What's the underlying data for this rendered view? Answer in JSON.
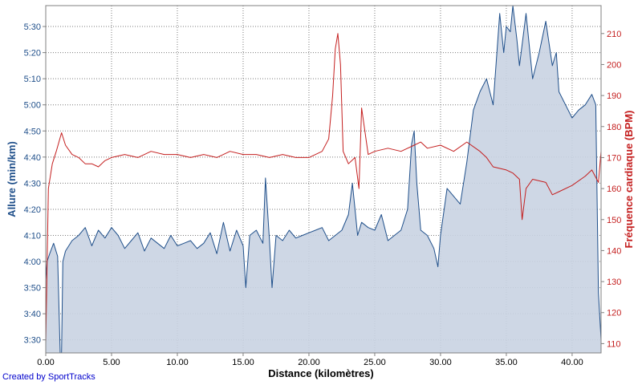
{
  "chart_data": {
    "type": "area",
    "xlabel": "Distance (kilomètres)",
    "x_ticks": [
      "0.00",
      "5.00",
      "10.00",
      "15.00",
      "20.00",
      "25.00",
      "30.00",
      "35.00",
      "40.00"
    ],
    "xlim": [
      0,
      42.2
    ],
    "grid": true,
    "left_axis": {
      "label": "Allure (min/km)",
      "ticks": [
        "3:30",
        "3:40",
        "3:50",
        "4:00",
        "4:10",
        "4:20",
        "4:30",
        "4:40",
        "4:50",
        "5:00",
        "5:10",
        "5:20",
        "5:30"
      ],
      "ylim_seconds": [
        205,
        338
      ]
    },
    "right_axis": {
      "label": "Fréquence cardiaque (BPM)",
      "ticks": [
        "110",
        "120",
        "130",
        "140",
        "150",
        "160",
        "170",
        "180",
        "190",
        "200",
        "210"
      ],
      "ylim": [
        107,
        219
      ]
    },
    "series": [
      {
        "axis": "left",
        "color": "#1f4f8a",
        "fill": "#c9d3e2",
        "x": [
          0,
          0.1,
          0.3,
          0.6,
          0.9,
          1.1,
          1.2,
          1.3,
          1.5,
          2.0,
          2.5,
          3.0,
          3.5,
          4.0,
          4.5,
          5.0,
          5.5,
          6.0,
          6.5,
          7.0,
          7.5,
          8.0,
          8.5,
          9.0,
          9.5,
          10.0,
          10.5,
          11.0,
          11.5,
          12.0,
          12.5,
          13.0,
          13.5,
          14.0,
          14.5,
          15.0,
          15.2,
          15.5,
          16.0,
          16.5,
          16.7,
          17.0,
          17.2,
          17.5,
          18.0,
          18.5,
          19.0,
          19.5,
          20.0,
          20.5,
          21.0,
          21.5,
          22.0,
          22.5,
          23.0,
          23.3,
          23.5,
          23.7,
          24.0,
          24.5,
          25.0,
          25.5,
          26.0,
          26.5,
          27.0,
          27.5,
          27.8,
          28.0,
          28.2,
          28.5,
          29.0,
          29.5,
          29.8,
          30.0,
          30.5,
          31.0,
          31.5,
          32.0,
          32.5,
          33.0,
          33.5,
          34.0,
          34.5,
          34.8,
          35.0,
          35.3,
          35.5,
          35.8,
          36.0,
          36.5,
          37.0,
          37.5,
          38.0,
          38.5,
          38.8,
          39.0,
          39.5,
          40.0,
          40.5,
          41.0,
          41.5,
          41.8,
          42.0,
          42.2
        ],
        "values_seconds": [
          233,
          240,
          243,
          247,
          242,
          205,
          203,
          240,
          244,
          248,
          250,
          253,
          246,
          252,
          249,
          253,
          250,
          245,
          248,
          251,
          244,
          249,
          247,
          245,
          250,
          246,
          247,
          248,
          245,
          247,
          251,
          243,
          255,
          244,
          252,
          246,
          230,
          250,
          252,
          247,
          272,
          248,
          230,
          250,
          248,
          252,
          249,
          250,
          251,
          252,
          253,
          248,
          250,
          252,
          258,
          270,
          260,
          250,
          255,
          253,
          252,
          258,
          248,
          250,
          252,
          260,
          285,
          290,
          270,
          252,
          250,
          245,
          238,
          250,
          268,
          265,
          262,
          278,
          298,
          305,
          310,
          300,
          335,
          320,
          330,
          328,
          338,
          325,
          315,
          335,
          310,
          320,
          332,
          315,
          320,
          305,
          300,
          295,
          298,
          300,
          304,
          300,
          228,
          210
        ]
      },
      {
        "axis": "right",
        "color": "#c41e1e",
        "x": [
          0,
          0.2,
          0.5,
          0.8,
          1.0,
          1.2,
          1.5,
          2.0,
          2.5,
          3.0,
          3.5,
          4.0,
          4.5,
          5.0,
          6.0,
          7.0,
          8.0,
          9.0,
          10.0,
          11.0,
          12.0,
          13.0,
          14.0,
          15.0,
          16.0,
          17.0,
          18.0,
          19.0,
          20.0,
          21.0,
          21.5,
          21.8,
          22.0,
          22.2,
          22.4,
          22.6,
          23.0,
          23.5,
          23.8,
          24.0,
          24.5,
          25.0,
          26.0,
          27.0,
          28.0,
          28.5,
          29.0,
          30.0,
          31.0,
          32.0,
          33.0,
          33.5,
          34.0,
          35.0,
          35.5,
          36.0,
          36.2,
          36.5,
          37.0,
          38.0,
          38.5,
          39.0,
          40.0,
          41.0,
          41.5,
          42.0,
          42.2
        ],
        "values": [
          110,
          160,
          168,
          172,
          175,
          178,
          174,
          171,
          170,
          168,
          168,
          167,
          169,
          170,
          171,
          170,
          172,
          171,
          171,
          170,
          171,
          170,
          172,
          171,
          171,
          170,
          171,
          170,
          170,
          172,
          176,
          190,
          205,
          210,
          200,
          172,
          168,
          170,
          160,
          186,
          171,
          172,
          173,
          172,
          174,
          175,
          173,
          174,
          172,
          175,
          172,
          170,
          167,
          166,
          165,
          163,
          150,
          160,
          163,
          162,
          158,
          159,
          161,
          164,
          166,
          162,
          172
        ]
      }
    ]
  },
  "credit": "Created by SportTracks",
  "colors": {
    "left_axis_text": "#1f4f8a",
    "right_axis_text": "#c41e1e",
    "frame": "#808080",
    "background": "#ffffff"
  }
}
